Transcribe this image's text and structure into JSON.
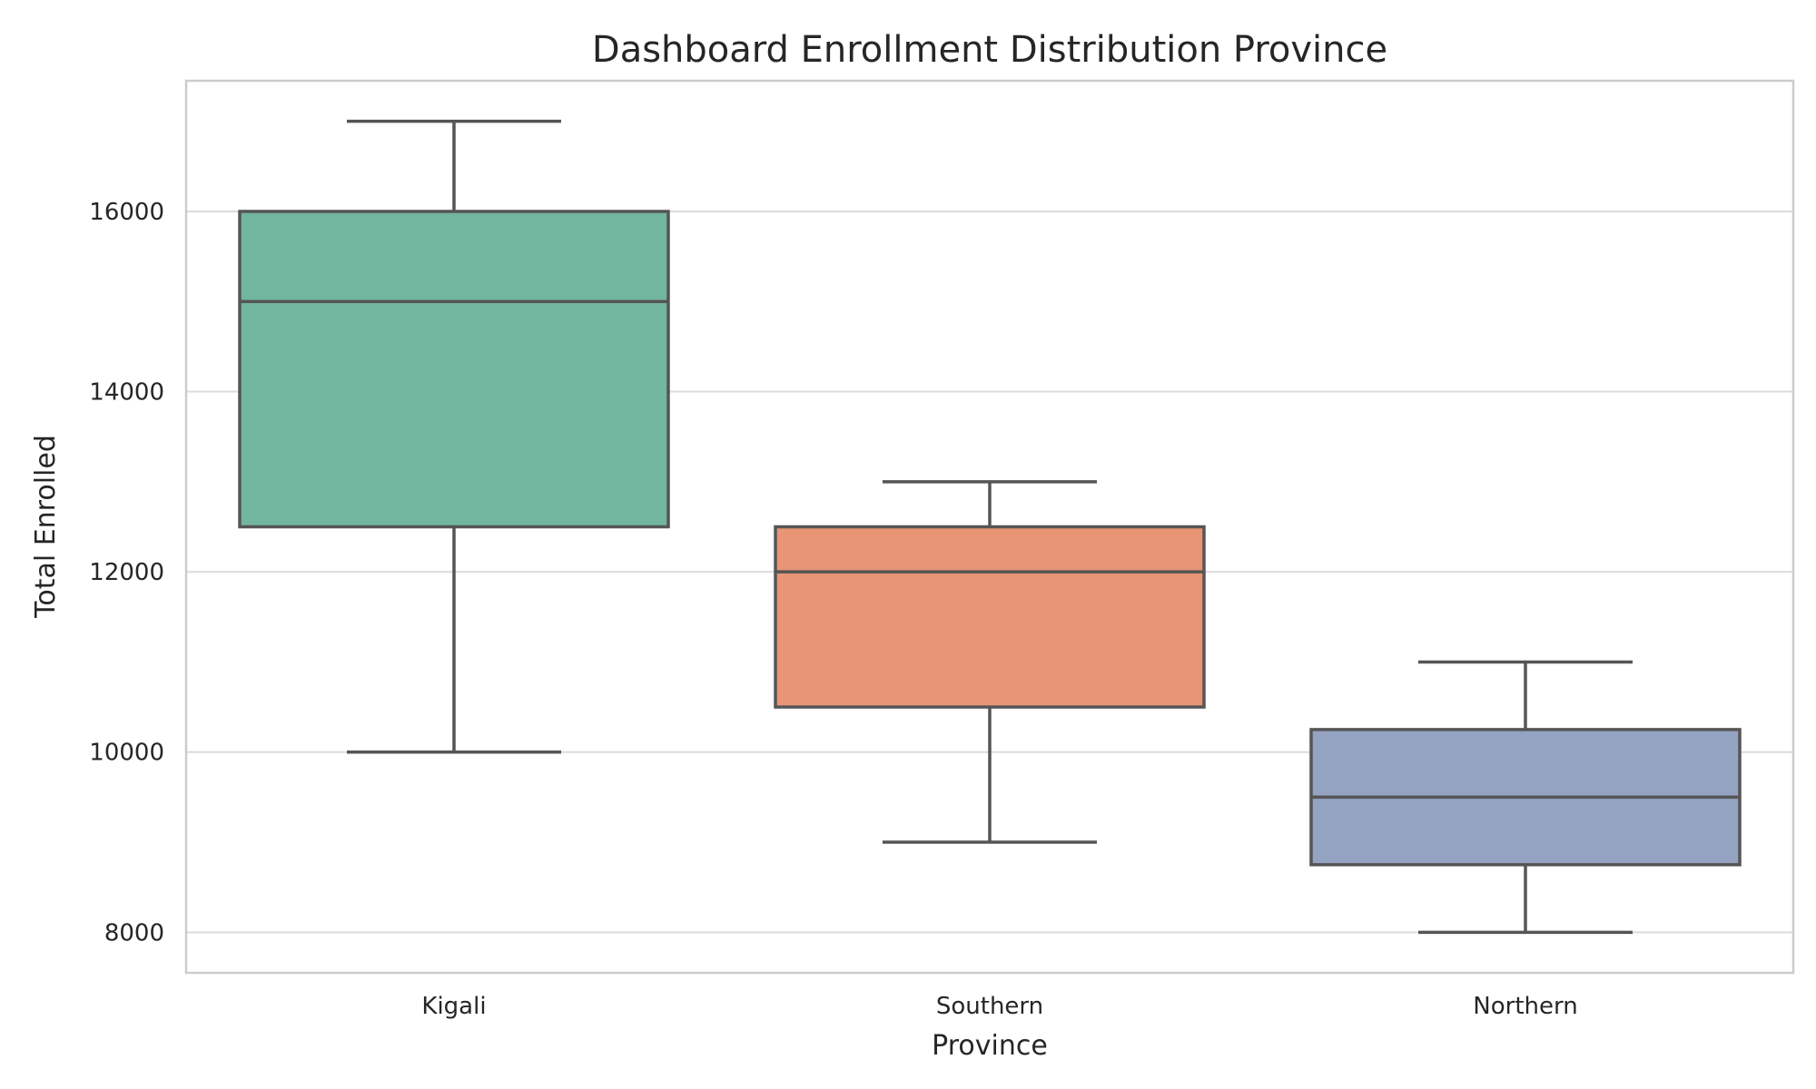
{
  "chart_data": {
    "type": "box",
    "title": "Dashboard Enrollment Distribution Province",
    "xlabel": "Province",
    "ylabel": "Total Enrolled",
    "categories": [
      "Kigali",
      "Southern",
      "Northern"
    ],
    "boxes": [
      {
        "category": "Kigali",
        "min": 10000,
        "q1": 12500,
        "median": 15000,
        "q3": 16000,
        "max": 17000,
        "color": "#73b6a0"
      },
      {
        "category": "Southern",
        "min": 9000,
        "q1": 10500,
        "median": 12000,
        "q3": 12500,
        "max": 13000,
        "color": "#e89575"
      },
      {
        "category": "Northern",
        "min": 8000,
        "q1": 8750,
        "median": 9500,
        "q3": 10250,
        "max": 11000,
        "color": "#95a3c3"
      }
    ],
    "ylim": [
      7550,
      17450
    ],
    "yticks": [
      8000,
      10000,
      12000,
      14000,
      16000
    ],
    "grid": true
  }
}
